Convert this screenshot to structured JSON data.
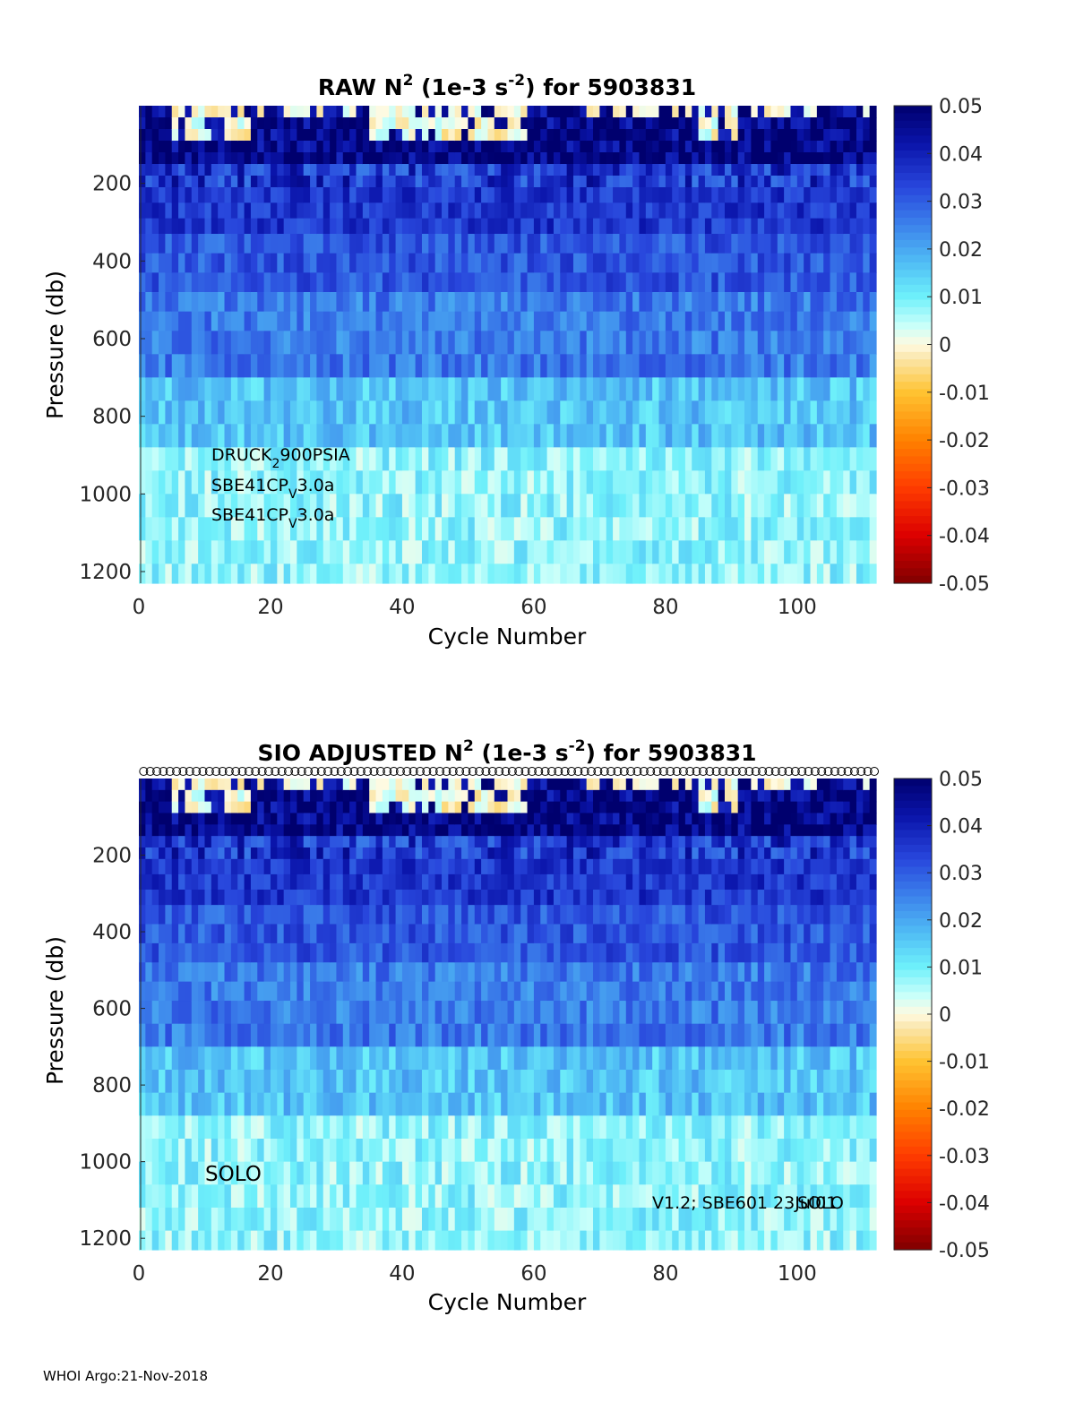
{
  "chart_data": [
    {
      "type": "heatmap",
      "title_main": "RAW N",
      "title_sup1": "2",
      "title_mid": " (1e-3 s",
      "title_sup2": "-2",
      "title_end": ") for 5903831",
      "xlabel": "Cycle Number",
      "ylabel": "Pressure (db)",
      "xlim": [
        0,
        112
      ],
      "ylim": [
        0,
        1230
      ],
      "y_reversed": true,
      "xticks": [
        "0",
        "20",
        "40",
        "60",
        "80",
        "100"
      ],
      "xtick_values": [
        0,
        20,
        40,
        60,
        80,
        100
      ],
      "yticks": [
        "200",
        "400",
        "600",
        "800",
        "1000",
        "1200"
      ],
      "ytick_values": [
        200,
        400,
        600,
        800,
        1000,
        1200
      ],
      "n_cycles": 112,
      "annotations": [
        {
          "base": "DRUCK",
          "sub": "2",
          "rest": "900PSIA"
        },
        {
          "base": "SBE41CP",
          "sub": "V",
          "rest": "3.0a"
        },
        {
          "base": "SBE41CP",
          "sub": "V",
          "rest": "3.0a"
        }
      ],
      "colorbar": {
        "ticks": [
          "0.05",
          "0.04",
          "0.03",
          "0.02",
          "0.01",
          "0",
          "-0.01",
          "-0.02",
          "-0.03",
          "-0.04",
          "-0.05"
        ],
        "tick_values": [
          0.05,
          0.04,
          0.03,
          0.02,
          0.01,
          0,
          -0.01,
          -0.02,
          -0.03,
          -0.04,
          -0.05
        ],
        "range": [
          -0.05,
          0.05
        ]
      },
      "depth_profile_mean_n2": [
        {
          "p_top": 0,
          "p_bot": 150,
          "value": 0.048
        },
        {
          "p_top": 150,
          "p_bot": 300,
          "value": 0.036
        },
        {
          "p_top": 300,
          "p_bot": 480,
          "value": 0.031
        },
        {
          "p_top": 480,
          "p_bot": 700,
          "value": 0.026
        },
        {
          "p_top": 700,
          "p_bot": 880,
          "value": 0.016
        },
        {
          "p_top": 880,
          "p_bot": 1230,
          "value": 0.008
        }
      ]
    },
    {
      "type": "heatmap",
      "title_main": "SIO  ADJUSTED N",
      "title_sup1": "2",
      "title_mid": " (1e-3 s",
      "title_sup2": "-2",
      "title_end": ") for 5903831",
      "xlabel": "Cycle Number",
      "ylabel": "Pressure (db)",
      "xlim": [
        0,
        112
      ],
      "ylim": [
        0,
        1230
      ],
      "y_reversed": true,
      "xticks": [
        "0",
        "20",
        "40",
        "60",
        "80",
        "100"
      ],
      "xtick_values": [
        0,
        20,
        40,
        60,
        80,
        100
      ],
      "yticks": [
        "200",
        "400",
        "600",
        "800",
        "1000",
        "1200"
      ],
      "ytick_values": [
        200,
        400,
        600,
        800,
        1000,
        1200
      ],
      "n_cycles": 112,
      "annotations": [
        {
          "text": "SOLO"
        },
        {
          "text": "V1.2; SBE601 23Jul01",
          "overlap": "SOLO"
        }
      ],
      "markers": "circle marker at top of each cycle profile",
      "colorbar": {
        "ticks": [
          "0.05",
          "0.04",
          "0.03",
          "0.02",
          "0.01",
          "0",
          "-0.01",
          "-0.02",
          "-0.03",
          "-0.04",
          "-0.05"
        ],
        "tick_values": [
          0.05,
          0.04,
          0.03,
          0.02,
          0.01,
          0,
          -0.01,
          -0.02,
          -0.03,
          -0.04,
          -0.05
        ],
        "range": [
          -0.05,
          0.05
        ]
      },
      "depth_profile_mean_n2": [
        {
          "p_top": 0,
          "p_bot": 150,
          "value": 0.048
        },
        {
          "p_top": 150,
          "p_bot": 300,
          "value": 0.036
        },
        {
          "p_top": 300,
          "p_bot": 480,
          "value": 0.031
        },
        {
          "p_top": 480,
          "p_bot": 700,
          "value": 0.026
        },
        {
          "p_top": 700,
          "p_bot": 880,
          "value": 0.016
        },
        {
          "p_top": 880,
          "p_bot": 1230,
          "value": 0.008
        }
      ]
    }
  ],
  "footer": "WHOI Argo:21-Nov-2018"
}
